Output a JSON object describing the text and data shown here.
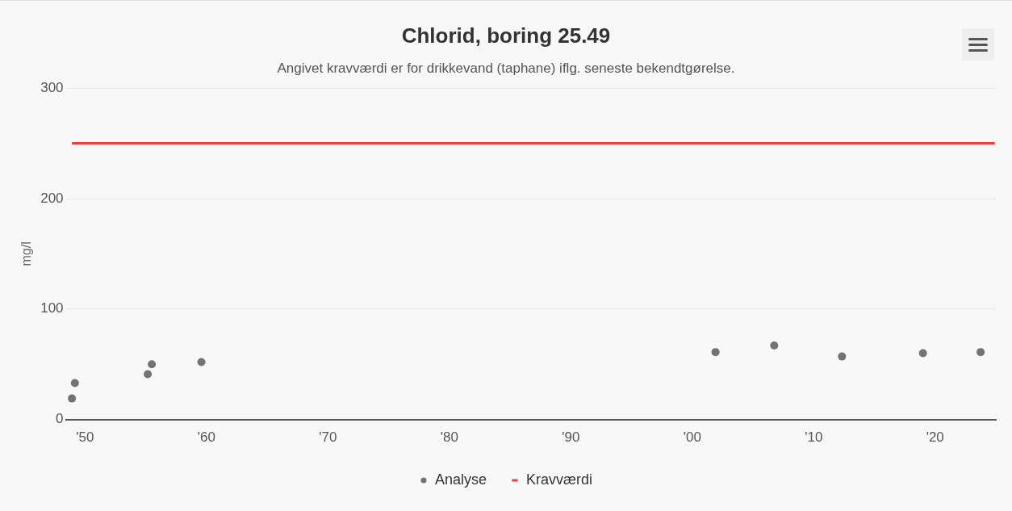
{
  "chart_data": {
    "type": "scatter",
    "title": "Chlorid, boring 25.49",
    "subtitle": "Angivet kravværdi er for drikkevand (taphane) iflg. seneste bekendtgørelse.",
    "ylabel": "mg/l",
    "x": [
      "1948-12",
      "1949-03",
      "1955-03",
      "1955-07",
      "1959-08",
      "2001-12",
      "2006-10",
      "2012-05",
      "2019-01",
      "2023-10"
    ],
    "series": [
      {
        "name": "Analyse",
        "color": "#737373",
        "marker": "circle",
        "values": [
          19,
          33,
          41,
          50,
          52,
          61,
          67,
          57,
          60,
          61
        ]
      },
      {
        "name": "Kravværdi",
        "type": "line",
        "color": "#f03c3c",
        "marker": "none",
        "line_style": "solid",
        "x": [
          "1948-12",
          "2024-12"
        ],
        "values": [
          250,
          250
        ]
      }
    ],
    "xlim": [
      "1948-06",
      "2025-01"
    ],
    "xticks": [
      {
        "value": "1950",
        "label": "'50"
      },
      {
        "value": "1960",
        "label": "'60"
      },
      {
        "value": "1970",
        "label": "'70"
      },
      {
        "value": "1980",
        "label": "'80"
      },
      {
        "value": "1990",
        "label": "'90"
      },
      {
        "value": "2000",
        "label": "'00"
      },
      {
        "value": "2010",
        "label": "'10"
      },
      {
        "value": "2020",
        "label": "'20"
      }
    ],
    "ylim": [
      0,
      300
    ],
    "yticks": [
      0,
      100,
      200,
      300
    ],
    "grid": "y",
    "legend": "bottom"
  }
}
